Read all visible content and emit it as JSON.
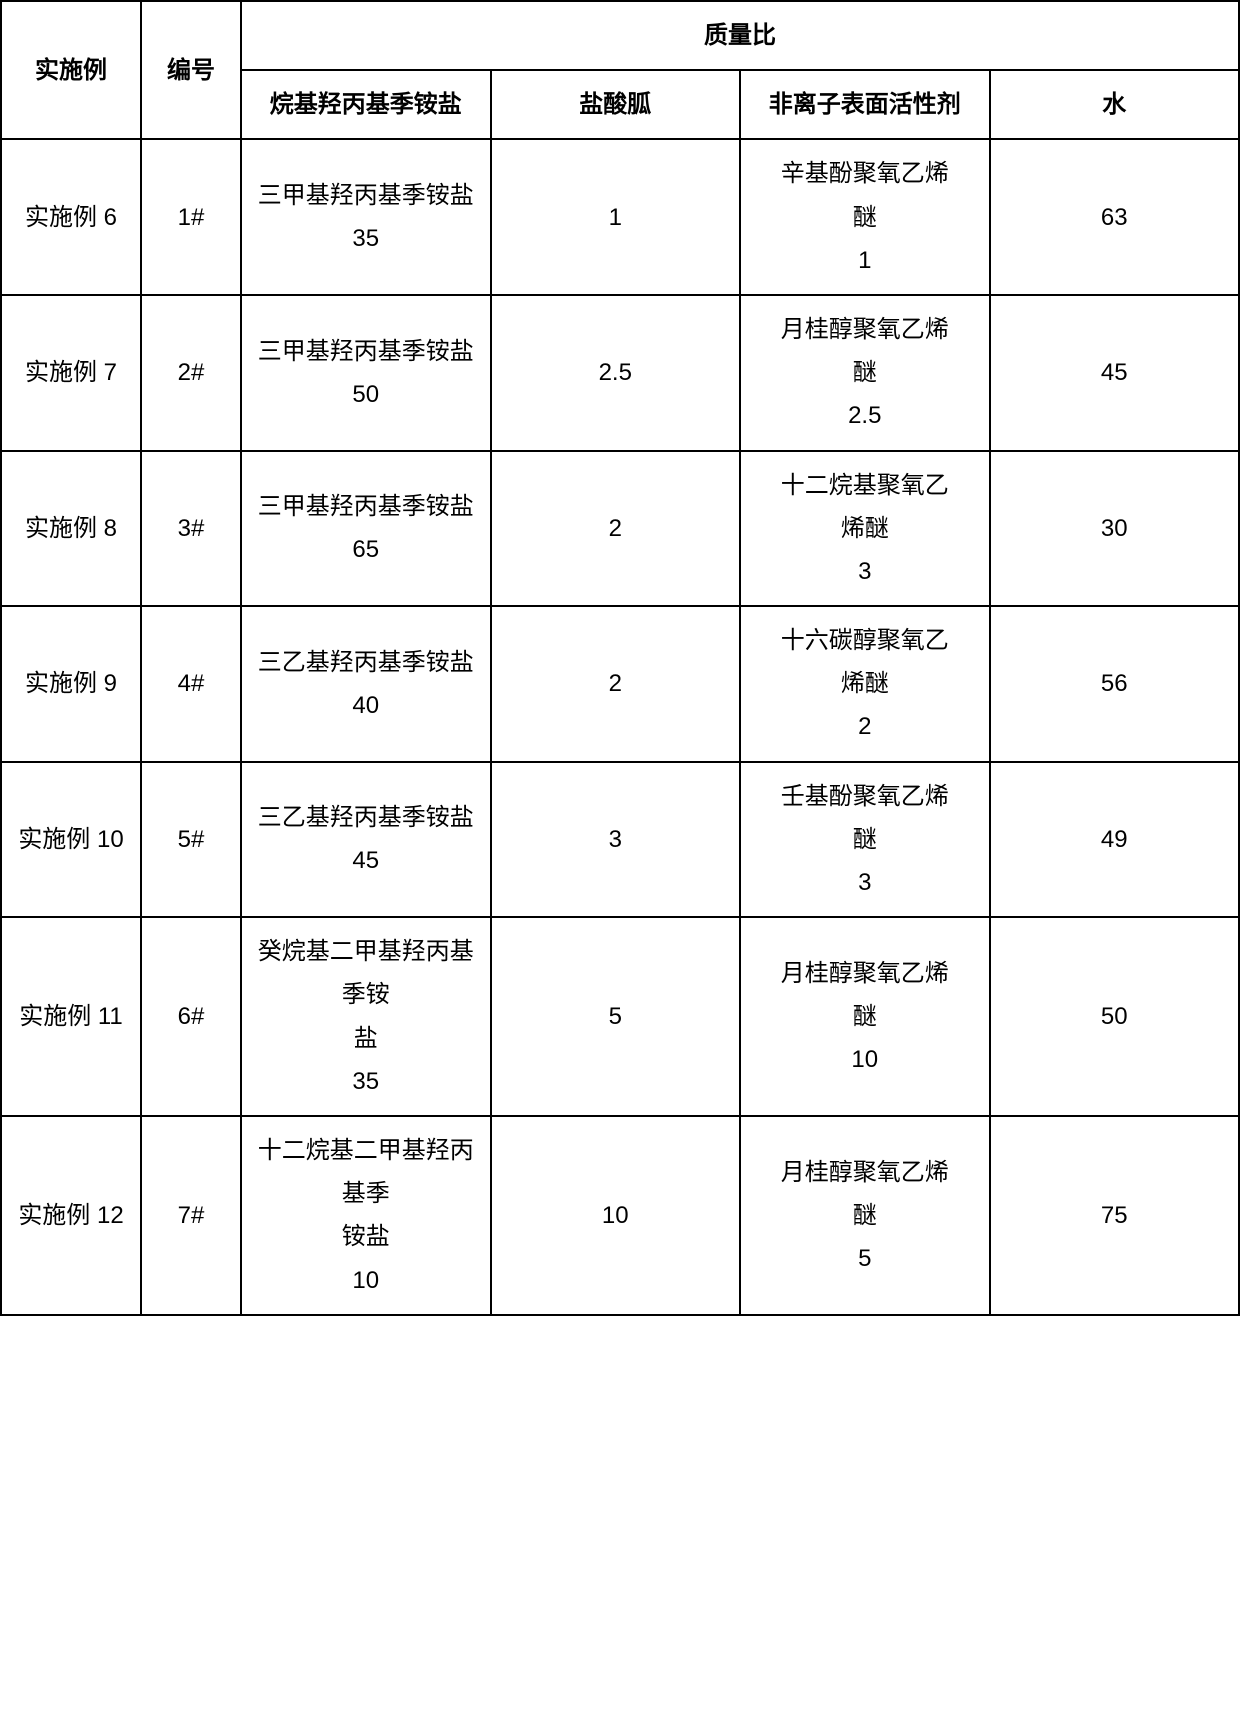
{
  "headers": {
    "example": "实施例",
    "number": "编号",
    "massRatio": "质量比",
    "compound": "烷基羟丙基季铵盐",
    "hcl": "盐酸胍",
    "surfactant": "非离子表面活性剂",
    "water": "水"
  },
  "rows": [
    {
      "example": "实施例 6",
      "number": "1#",
      "compound": "三甲基羟丙基季铵盐\n35",
      "hcl": "1",
      "surfactant": "辛基酚聚氧乙烯\n醚\n1",
      "water": "63"
    },
    {
      "example": "实施例 7",
      "number": "2#",
      "compound": "三甲基羟丙基季铵盐\n50",
      "hcl": "2.5",
      "surfactant": "月桂醇聚氧乙烯\n醚\n2.5",
      "water": "45"
    },
    {
      "example": "实施例 8",
      "number": "3#",
      "compound": "三甲基羟丙基季铵盐\n65",
      "hcl": "2",
      "surfactant": "十二烷基聚氧乙\n烯醚\n3",
      "water": "30"
    },
    {
      "example": "实施例 9",
      "number": "4#",
      "compound": "三乙基羟丙基季铵盐\n40",
      "hcl": "2",
      "surfactant": "十六碳醇聚氧乙\n烯醚\n2",
      "water": "56"
    },
    {
      "example": "实施例 10",
      "number": "5#",
      "compound": "三乙基羟丙基季铵盐\n45",
      "hcl": "3",
      "surfactant": "壬基酚聚氧乙烯\n醚\n3",
      "water": "49"
    },
    {
      "example": "实施例 11",
      "number": "6#",
      "compound": "癸烷基二甲基羟丙基季铵\n盐\n35",
      "hcl": "5",
      "surfactant": "月桂醇聚氧乙烯\n醚\n10",
      "water": "50"
    },
    {
      "example": "实施例 12",
      "number": "7#",
      "compound": "十二烷基二甲基羟丙基季\n铵盐\n10",
      "hcl": "10",
      "surfactant": "月桂醇聚氧乙烯\n醚\n5",
      "water": "75"
    }
  ],
  "styling": {
    "border_color": "#000000",
    "border_width": 2,
    "background_color": "#ffffff",
    "text_color": "#000000",
    "font_size": 24,
    "header_font_weight": "bold",
    "line_height": 1.8,
    "column_widths": {
      "example": 140,
      "number": 100,
      "compound": 320,
      "hcl": 110,
      "surfactant": 230,
      "water": 80
    }
  }
}
